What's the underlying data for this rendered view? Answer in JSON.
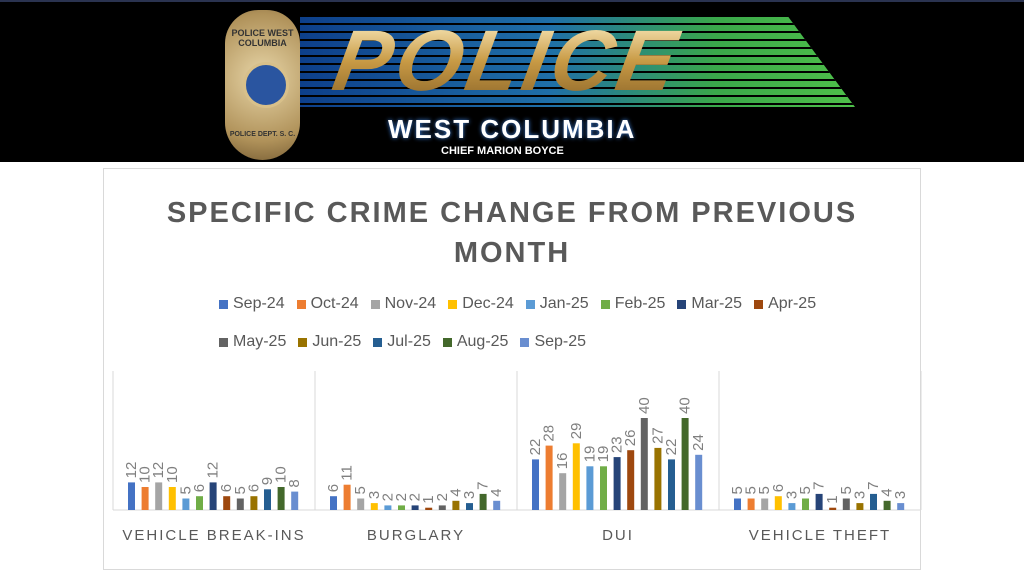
{
  "header": {
    "logo_text": "POLICE",
    "badge_top": "POLICE WEST COLUMBIA",
    "badge_bottom": "POLICE DEPT. S. C.",
    "city": "WEST COLUMBIA",
    "chief": "CHIEF MARION BOYCE"
  },
  "chart_data": {
    "type": "bar",
    "title": "SPECIFIC CRIME CHANGE FROM PREVIOUS MONTH",
    "categories": [
      "VEHICLE BREAK-INS",
      "BURGLARY",
      "DUI",
      "VEHICLE THEFT"
    ],
    "legend_position": "top",
    "grid": false,
    "ylim": [
      0,
      40
    ],
    "series": [
      {
        "name": "Sep-24",
        "color": "#4472C4",
        "values": [
          12,
          6,
          22,
          5
        ]
      },
      {
        "name": "Oct-24",
        "color": "#ED7D31",
        "values": [
          10,
          11,
          28,
          5
        ]
      },
      {
        "name": "Nov-24",
        "color": "#A5A5A5",
        "values": [
          12,
          5,
          16,
          5
        ]
      },
      {
        "name": "Dec-24",
        "color": "#FFC000",
        "values": [
          10,
          3,
          29,
          6
        ]
      },
      {
        "name": "Jan-25",
        "color": "#5B9BD5",
        "values": [
          5,
          2,
          19,
          3
        ]
      },
      {
        "name": "Feb-25",
        "color": "#70AD47",
        "values": [
          6,
          2,
          19,
          5
        ]
      },
      {
        "name": "Mar-25",
        "color": "#264478",
        "values": [
          12,
          2,
          23,
          7
        ]
      },
      {
        "name": "Apr-25",
        "color": "#9E480E",
        "values": [
          6,
          1,
          26,
          1
        ]
      },
      {
        "name": "May-25",
        "color": "#636363",
        "values": [
          5,
          2,
          40,
          5
        ]
      },
      {
        "name": "Jun-25",
        "color": "#997300",
        "values": [
          6,
          4,
          27,
          3
        ]
      },
      {
        "name": "Jul-25",
        "color": "#255E91",
        "values": [
          9,
          3,
          22,
          7
        ]
      },
      {
        "name": "Aug-25",
        "color": "#43682B",
        "values": [
          10,
          7,
          40,
          4
        ]
      },
      {
        "name": "Sep-25",
        "color": "#698ED0",
        "values": [
          8,
          4,
          24,
          3
        ]
      }
    ]
  }
}
